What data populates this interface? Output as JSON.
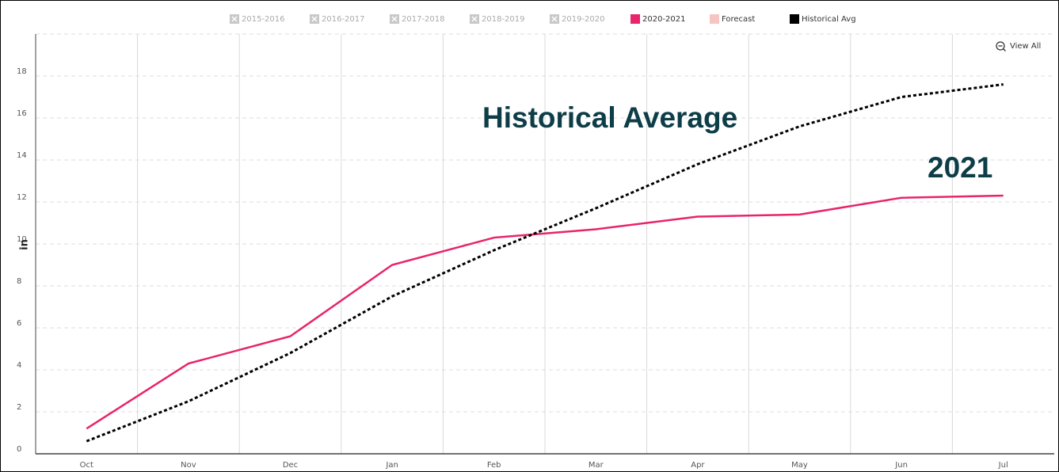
{
  "chart_data": {
    "type": "line",
    "y_label": "in",
    "view_all": "View All",
    "categories": [
      "Oct",
      "Nov",
      "Dec",
      "Jan",
      "Feb",
      "Mar",
      "Apr",
      "May",
      "Jun",
      "Jul"
    ],
    "ylim": [
      0,
      20
    ],
    "yticks": [
      0,
      2,
      4,
      6,
      8,
      10,
      12,
      14,
      16,
      18
    ],
    "grid": true,
    "hidden_legend": [
      {
        "name": "2015-2016"
      },
      {
        "name": "2016-2017"
      },
      {
        "name": "2017-2018"
      },
      {
        "name": "2018-2019"
      },
      {
        "name": "2019-2020"
      }
    ],
    "forecast": {
      "name": "Forecast",
      "color": "#f7c4c4"
    },
    "series": [
      {
        "name": "2020-2021",
        "color": "#e8246b",
        "dash": false,
        "values": [
          1.2,
          4.3,
          5.6,
          9.0,
          10.3,
          10.7,
          11.3,
          11.4,
          12.2,
          12.3
        ]
      },
      {
        "name": "Historical Avg",
        "color": "#000000",
        "dash": true,
        "values": [
          0.6,
          2.5,
          4.8,
          7.5,
          9.7,
          11.7,
          13.8,
          15.6,
          17.0,
          17.6
        ]
      }
    ],
    "annotations": [
      {
        "text": "Historical Average"
      },
      {
        "text": "2021"
      }
    ]
  }
}
